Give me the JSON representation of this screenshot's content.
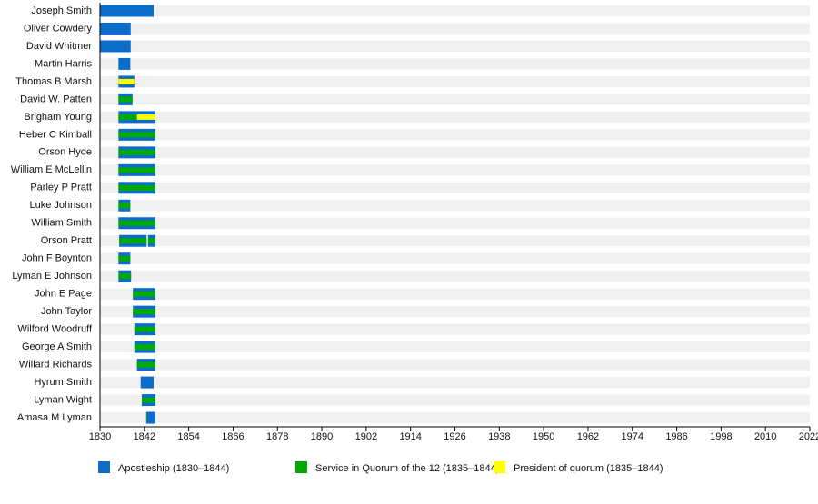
{
  "chart_data": {
    "type": "timeline",
    "categories": [
      "Joseph Smith",
      "Oliver Cowdery",
      "David Whitmer",
      "Martin Harris",
      "Thomas B Marsh",
      "David W. Patten",
      "Brigham Young",
      "Heber C Kimball",
      "Orson Hyde",
      "William E McLellin",
      "Parley P Pratt",
      "Luke Johnson",
      "William Smith",
      "Orson Pratt",
      "John F Boynton",
      "Lyman E Johnson",
      "John E Page",
      "John Taylor",
      "Wilford Woodruff",
      "George A Smith",
      "Willard Richards",
      "Hyrum Smith",
      "Lyman Wight",
      "Amasa M Lyman"
    ],
    "series": [
      {
        "name": "Apostleship (1830–1844)",
        "color": "#0c6ccc",
        "values": [
          [
            [
              1830,
              1844.5
            ]
          ],
          [
            [
              1830,
              1838.3
            ]
          ],
          [
            [
              1830,
              1838.3
            ]
          ],
          [
            [
              1835,
              1838.2
            ]
          ],
          [
            [
              1835,
              1839.3
            ]
          ],
          [
            [
              1835,
              1838.8
            ]
          ],
          [
            [
              1835,
              1845
            ]
          ],
          [
            [
              1835,
              1845
            ]
          ],
          [
            [
              1835,
              1845
            ]
          ],
          [
            [
              1835,
              1845
            ]
          ],
          [
            [
              1835,
              1845
            ]
          ],
          [
            [
              1835,
              1838.2
            ]
          ],
          [
            [
              1835,
              1845
            ]
          ],
          [
            [
              1835.2,
              1842.6
            ],
            [
              1843,
              1845
            ]
          ],
          [
            [
              1835,
              1838.2
            ]
          ],
          [
            [
              1835,
              1838.4
            ]
          ],
          [
            [
              1838.9,
              1845
            ]
          ],
          [
            [
              1838.9,
              1845
            ]
          ],
          [
            [
              1839.3,
              1845
            ]
          ],
          [
            [
              1839.3,
              1845
            ]
          ],
          [
            [
              1840,
              1845
            ]
          ],
          [
            [
              1841,
              1844.5
            ]
          ],
          [
            [
              1841.3,
              1845
            ]
          ],
          [
            [
              1842.5,
              1845
            ]
          ]
        ]
      },
      {
        "name": "Service in Quorum of the 12 (1835–1844)",
        "color": "#00aa00",
        "values": [
          [],
          [],
          [],
          [],
          [
            [
              1835,
              1839.3
            ]
          ],
          [
            [
              1835,
              1838.8
            ]
          ],
          [
            [
              1835,
              1840
            ]
          ],
          [
            [
              1835,
              1845
            ]
          ],
          [
            [
              1835,
              1845
            ]
          ],
          [
            [
              1835,
              1845
            ]
          ],
          [
            [
              1835,
              1845
            ]
          ],
          [
            [
              1835,
              1838.2
            ]
          ],
          [
            [
              1835,
              1845
            ]
          ],
          [
            [
              1835.2,
              1842.6
            ],
            [
              1843,
              1845
            ]
          ],
          [
            [
              1835,
              1838.2
            ]
          ],
          [
            [
              1835,
              1838.4
            ]
          ],
          [
            [
              1838.9,
              1845
            ]
          ],
          [
            [
              1838.9,
              1845
            ]
          ],
          [
            [
              1839.3,
              1845
            ]
          ],
          [
            [
              1839.3,
              1845
            ]
          ],
          [
            [
              1840,
              1845
            ]
          ],
          [],
          [
            [
              1841.3,
              1845
            ]
          ],
          [
            [
              1842.5,
              1842.8
            ]
          ]
        ]
      },
      {
        "name": "President of quorum (1835–1844)",
        "color": "#ffff00",
        "values": [
          [],
          [],
          [],
          [],
          [
            [
              1835,
              1839.3
            ]
          ],
          [],
          [
            [
              1840,
              1845
            ]
          ],
          [],
          [],
          [],
          [],
          [],
          [],
          [],
          [],
          [],
          [],
          [],
          [],
          [],
          [],
          [],
          [],
          []
        ]
      }
    ],
    "xlim": [
      1830,
      2022
    ],
    "xticks": [
      1830,
      1842,
      1854,
      1866,
      1878,
      1890,
      1902,
      1914,
      1926,
      1938,
      1950,
      1962,
      1974,
      1986,
      1998,
      2010,
      2022
    ]
  }
}
